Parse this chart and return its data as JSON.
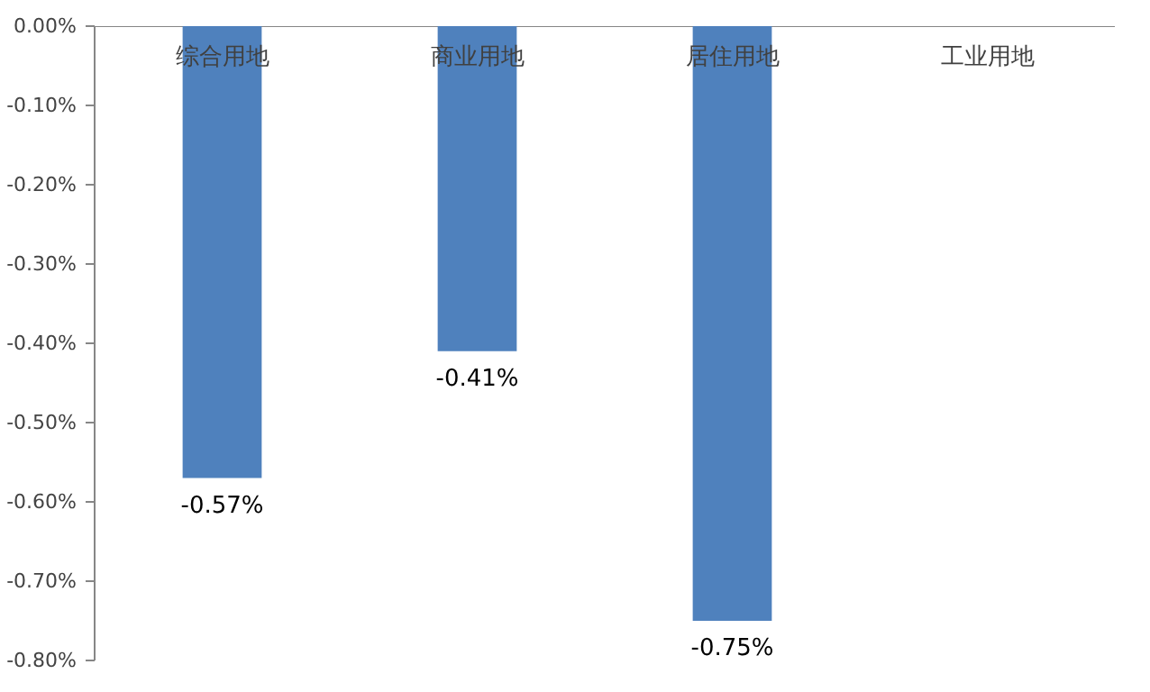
{
  "chart_data": {
    "type": "bar",
    "categories": [
      "综合用地",
      "商业用地",
      "居住用地",
      "工业用地"
    ],
    "values": [
      -0.57,
      -0.41,
      -0.75,
      null
    ],
    "value_labels": [
      "-0.57%",
      "-0.41%",
      "-0.75%",
      null
    ],
    "color": "#4f81bd",
    "ylim": [
      -0.8,
      0
    ],
    "yticks": [
      {
        "value": 0,
        "label": "0.00%"
      },
      {
        "value": -0.1,
        "label": "-0.10%"
      },
      {
        "value": -0.2,
        "label": "-0.20%"
      },
      {
        "value": -0.3,
        "label": "-0.30%"
      },
      {
        "value": -0.4,
        "label": "-0.40%"
      },
      {
        "value": -0.5,
        "label": "-0.50%"
      },
      {
        "value": -0.6,
        "label": "-0.60%"
      },
      {
        "value": -0.7,
        "label": "-0.70%"
      },
      {
        "value": -0.8,
        "label": "-0.80%"
      }
    ],
    "grid": false
  }
}
